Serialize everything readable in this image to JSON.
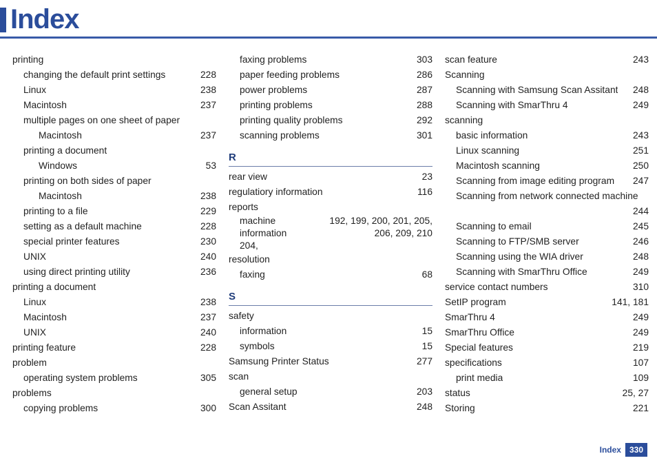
{
  "header": {
    "title": "Index"
  },
  "footer": {
    "label": "Index",
    "page": "330"
  },
  "col1": [
    {
      "level": 0,
      "label": "printing",
      "page": ""
    },
    {
      "level": 1,
      "label": "changing the default print settings",
      "page": "228"
    },
    {
      "level": 1,
      "label": "Linux",
      "page": "238"
    },
    {
      "level": 1,
      "label": "Macintosh",
      "page": "237"
    },
    {
      "level": 1,
      "label": "multiple pages on one sheet of paper",
      "page": ""
    },
    {
      "level": 2,
      "label": "Macintosh",
      "page": "237"
    },
    {
      "level": 1,
      "label": "printing a document",
      "page": ""
    },
    {
      "level": 2,
      "label": "Windows",
      "page": "53"
    },
    {
      "level": 1,
      "label": "printing on both sides of paper",
      "page": ""
    },
    {
      "level": 2,
      "label": "Macintosh",
      "page": "238"
    },
    {
      "level": 1,
      "label": "printing to a file",
      "page": "229"
    },
    {
      "level": 1,
      "label": "setting as a default machine",
      "page": "228"
    },
    {
      "level": 1,
      "label": "special printer features",
      "page": "230"
    },
    {
      "level": 1,
      "label": "UNIX",
      "page": "240"
    },
    {
      "level": 1,
      "label": "using direct printing utility",
      "page": "236"
    },
    {
      "level": 0,
      "label": "printing a document",
      "page": ""
    },
    {
      "level": 1,
      "label": "Linux",
      "page": "238"
    },
    {
      "level": 1,
      "label": "Macintosh",
      "page": "237"
    },
    {
      "level": 1,
      "label": "UNIX",
      "page": "240"
    },
    {
      "level": 0,
      "label": "printing feature",
      "page": "228"
    },
    {
      "level": 0,
      "label": "problem",
      "page": ""
    },
    {
      "level": 1,
      "label": "operating system problems",
      "page": "305"
    },
    {
      "level": 0,
      "label": "problems",
      "page": ""
    },
    {
      "level": 1,
      "label": "copying problems",
      "page": "300"
    }
  ],
  "col2": [
    {
      "level": 1,
      "label": "faxing problems",
      "page": "303"
    },
    {
      "level": 1,
      "label": "paper feeding problems",
      "page": "286"
    },
    {
      "level": 1,
      "label": "power problems",
      "page": "287"
    },
    {
      "level": 1,
      "label": "printing problems",
      "page": "288"
    },
    {
      "level": 1,
      "label": "printing quality problems",
      "page": "292"
    },
    {
      "level": 1,
      "label": "scanning problems",
      "page": "301"
    },
    {
      "section": "R"
    },
    {
      "level": 0,
      "label": "rear view",
      "page": "23"
    },
    {
      "level": 0,
      "label": "regulatiory information",
      "page": "116"
    },
    {
      "level": 0,
      "label": "reports",
      "page": ""
    },
    {
      "multi": true,
      "level": 1,
      "label_left": "machine information",
      "label_left2": "204,",
      "pages": "192, 199, 200, 201, 205, 206, 209, 210"
    },
    {
      "level": 0,
      "label": "resolution",
      "page": ""
    },
    {
      "level": 1,
      "label": "faxing",
      "page": "68"
    },
    {
      "section": "S"
    },
    {
      "level": 0,
      "label": "safety",
      "page": ""
    },
    {
      "level": 1,
      "label": "information",
      "page": "15"
    },
    {
      "level": 1,
      "label": "symbols",
      "page": "15"
    },
    {
      "level": 0,
      "label": "Samsung Printer Status",
      "page": "277"
    },
    {
      "level": 0,
      "label": "scan",
      "page": ""
    },
    {
      "level": 1,
      "label": "general setup",
      "page": "203"
    },
    {
      "level": 0,
      "label": "Scan Assitant",
      "page": "248"
    }
  ],
  "col3": [
    {
      "level": 0,
      "label": "scan feature",
      "page": "243"
    },
    {
      "level": 0,
      "label": "Scanning",
      "page": ""
    },
    {
      "level": 1,
      "label": "Scanning with Samsung Scan Assitant",
      "page": "248"
    },
    {
      "level": 1,
      "label": "Scanning with SmarThru 4",
      "page": "249"
    },
    {
      "level": 0,
      "label": "scanning",
      "page": ""
    },
    {
      "level": 1,
      "label": "basic information",
      "page": "243"
    },
    {
      "level": 1,
      "label": "Linux scanning",
      "page": "251"
    },
    {
      "level": 1,
      "label": "Macintosh scanning",
      "page": "250"
    },
    {
      "level": 1,
      "label": "Scanning from image editing program",
      "page": "247"
    },
    {
      "level": 1,
      "label": "Scanning from network connected machine",
      "page": ""
    },
    {
      "level": 1,
      "label": "",
      "page": "244",
      "rightonly": true
    },
    {
      "level": 1,
      "label": "Scanning to email",
      "page": "245"
    },
    {
      "level": 1,
      "label": "Scanning to FTP/SMB server",
      "page": "246"
    },
    {
      "level": 1,
      "label": "Scanning using the WIA driver",
      "page": "248"
    },
    {
      "level": 1,
      "label": "Scanning with SmarThru Office",
      "page": "249"
    },
    {
      "level": 0,
      "label": "service contact numbers",
      "page": "310"
    },
    {
      "level": 0,
      "label": "SetIP program",
      "page": "141, 181"
    },
    {
      "level": 0,
      "label": "SmarThru 4",
      "page": "249"
    },
    {
      "level": 0,
      "label": "SmarThru Office",
      "page": "249"
    },
    {
      "level": 0,
      "label": "Special features",
      "page": "219"
    },
    {
      "level": 0,
      "label": "specifications",
      "page": "107"
    },
    {
      "level": 1,
      "label": "print media",
      "page": "109"
    },
    {
      "level": 0,
      "label": "status",
      "page": "25, 27"
    },
    {
      "level": 0,
      "label": "Storing",
      "page": "221"
    }
  ]
}
